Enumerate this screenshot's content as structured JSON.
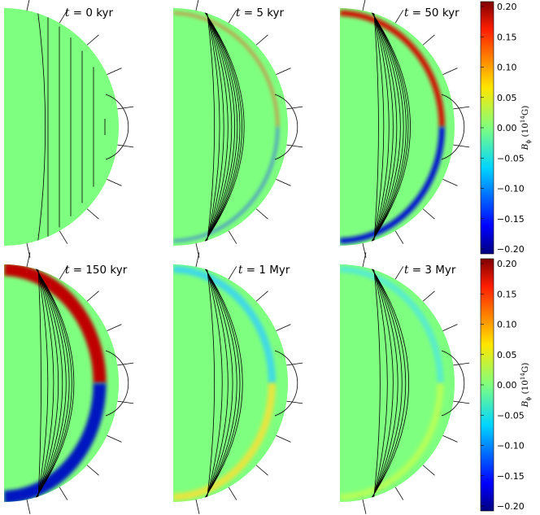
{
  "colors": {
    "background": "#7fff7f",
    "field_line": "#000000"
  },
  "chart_data": {
    "type": "heatmap",
    "description_variable": "toroidal magnetic field B_phi",
    "panels": [
      {
        "t_symbol": "t",
        "eq": "= ",
        "time": "0 kyr",
        "band": "none",
        "lines": [
          [
            0.4,
            1
          ],
          [
            0.52,
            0.9
          ],
          [
            0.63,
            0.75
          ],
          [
            0.73,
            0.58
          ],
          [
            0.82,
            0.45
          ],
          [
            0.9,
            0.35
          ],
          [
            1.0,
            0.25
          ]
        ]
      },
      {
        "t_symbol": "t",
        "eq": "= ",
        "time": "5 kyr",
        "band": "thin",
        "lines": [
          [
            0.4,
            1
          ],
          [
            0.5,
            1
          ],
          [
            0.58,
            1
          ],
          [
            0.66,
            1
          ],
          [
            0.73,
            1
          ],
          [
            0.79,
            1
          ],
          [
            0.84,
            1
          ],
          [
            0.89,
            1
          ],
          [
            0.93,
            1
          ],
          [
            0.97,
            1
          ]
        ]
      },
      {
        "t_symbol": "t",
        "eq": "= ",
        "time": "50 kyr",
        "band": "strong",
        "lines": [
          [
            0.35,
            1
          ],
          [
            0.45,
            1
          ],
          [
            0.55,
            1
          ],
          [
            0.63,
            1
          ],
          [
            0.7,
            1
          ],
          [
            0.77,
            1
          ],
          [
            0.83,
            1
          ],
          [
            0.88,
            1
          ],
          [
            0.92,
            1
          ],
          [
            0.96,
            1
          ]
        ]
      },
      {
        "t_symbol": "t",
        "eq": "= ",
        "time": "150 kyr",
        "band": "thick",
        "lines": [
          [
            0.32,
            1
          ],
          [
            0.45,
            1
          ],
          [
            0.56,
            1
          ],
          [
            0.65,
            1
          ],
          [
            0.73,
            1
          ],
          [
            0.8,
            1
          ],
          [
            0.86,
            1
          ],
          [
            0.91,
            1
          ],
          [
            0.95,
            1
          ]
        ]
      },
      {
        "t_symbol": "t",
        "eq": "= ",
        "time": "1 Myr",
        "band": "diffuse",
        "lines": [
          [
            0.4,
            1
          ],
          [
            0.55,
            1
          ],
          [
            0.66,
            1
          ],
          [
            0.75,
            1
          ],
          [
            0.83,
            1
          ],
          [
            0.89,
            1
          ],
          [
            0.94,
            1
          ]
        ]
      },
      {
        "t_symbol": "t",
        "eq": "= ",
        "time": "3 Myr",
        "band": "faint",
        "lines": [
          [
            0.38,
            1
          ],
          [
            0.52,
            1
          ],
          [
            0.63,
            1
          ],
          [
            0.72,
            1
          ],
          [
            0.8,
            1
          ],
          [
            0.87,
            1
          ],
          [
            0.93,
            1
          ]
        ]
      }
    ],
    "colorbar": {
      "label_symbol": "B",
      "label_sub": "ϕ",
      "label_units_pre": "(10",
      "label_exp": "14",
      "label_units_post": "G)",
      "range": [
        -0.2,
        0.2
      ],
      "ticks": [
        "0.20",
        "0.15",
        "0.10",
        "0.05",
        "0.00",
        "−0.05",
        "−0.10",
        "−0.15",
        "−0.20"
      ],
      "tick_values": [
        0.2,
        0.15,
        0.1,
        0.05,
        0.0,
        -0.05,
        -0.1,
        -0.15,
        -0.2
      ],
      "colormap": "jet"
    }
  }
}
